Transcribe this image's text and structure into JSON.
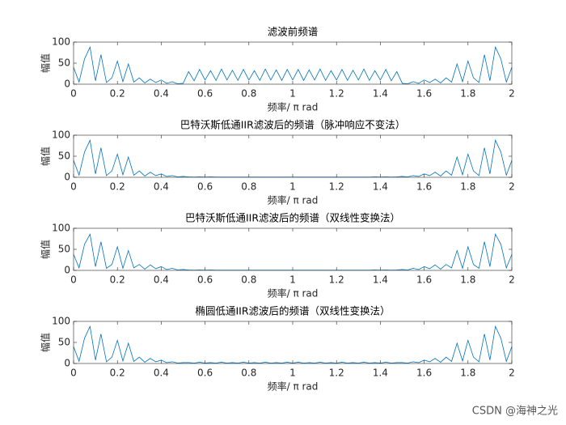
{
  "chart_data": [
    {
      "type": "line",
      "title": "滤波前频谱",
      "xlabel": "频率/ π rad",
      "ylabel": "幅值",
      "color": "#0072bd",
      "xlim": [
        0,
        2
      ],
      "ylim": [
        0,
        100
      ],
      "xticks": [
        0,
        0.2,
        0.4,
        0.6,
        0.8,
        1,
        1.2,
        1.4,
        1.6,
        1.8,
        2
      ],
      "yticks": [
        0,
        50,
        100
      ],
      "x": [
        0,
        0.025,
        0.05,
        0.075,
        0.1,
        0.125,
        0.15,
        0.175,
        0.2,
        0.225,
        0.25,
        0.275,
        0.3,
        0.325,
        0.35,
        0.375,
        0.4,
        0.425,
        0.45,
        0.475,
        0.5,
        0.525,
        0.55,
        0.575,
        0.6,
        0.625,
        0.65,
        0.675,
        0.7,
        0.725,
        0.75,
        0.775,
        0.8,
        0.825,
        0.85,
        0.875,
        0.9,
        0.925,
        0.95,
        0.975,
        1,
        1.025,
        1.05,
        1.075,
        1.1,
        1.125,
        1.15,
        1.175,
        1.2,
        1.225,
        1.25,
        1.275,
        1.3,
        1.325,
        1.35,
        1.375,
        1.4,
        1.425,
        1.45,
        1.475,
        1.5,
        1.525,
        1.55,
        1.575,
        1.6,
        1.625,
        1.65,
        1.675,
        1.7,
        1.725,
        1.75,
        1.775,
        1.8,
        1.825,
        1.85,
        1.875,
        1.9,
        1.925,
        1.95,
        1.975,
        2
      ],
      "values": [
        40,
        5,
        60,
        88,
        8,
        70,
        4,
        15,
        55,
        6,
        48,
        5,
        15,
        3,
        12,
        4,
        10,
        2,
        6,
        1,
        2,
        30,
        8,
        35,
        10,
        32,
        9,
        36,
        10,
        33,
        9,
        35,
        10,
        32,
        9,
        36,
        10,
        34,
        9,
        35,
        10,
        35,
        9,
        34,
        10,
        36,
        9,
        32,
        10,
        35,
        9,
        33,
        10,
        36,
        9,
        32,
        10,
        35,
        8,
        30,
        2,
        1,
        6,
        2,
        10,
        4,
        12,
        3,
        15,
        5,
        48,
        6,
        55,
        15,
        4,
        70,
        8,
        88,
        60,
        5,
        40
      ]
    },
    {
      "type": "line",
      "title": "巴特沃斯低通IIR滤波后的频谱（脉冲响应不变法）",
      "xlabel": "频率/ π rad",
      "ylabel": "幅值",
      "color": "#0072bd",
      "xlim": [
        0,
        2
      ],
      "ylim": [
        0,
        100
      ],
      "xticks": [
        0,
        0.2,
        0.4,
        0.6,
        0.8,
        1,
        1.2,
        1.4,
        1.6,
        1.8,
        2
      ],
      "yticks": [
        0,
        50,
        100
      ],
      "x": [
        0,
        0.025,
        0.05,
        0.075,
        0.1,
        0.125,
        0.15,
        0.175,
        0.2,
        0.225,
        0.25,
        0.275,
        0.3,
        0.325,
        0.35,
        0.375,
        0.4,
        0.425,
        0.45,
        0.475,
        0.5,
        0.525,
        0.55,
        0.575,
        0.6,
        0.625,
        0.65,
        0.675,
        0.7,
        0.725,
        0.75,
        0.775,
        0.8,
        0.825,
        0.85,
        0.875,
        0.9,
        0.925,
        0.95,
        0.975,
        1,
        1.025,
        1.05,
        1.075,
        1.1,
        1.125,
        1.15,
        1.175,
        1.2,
        1.225,
        1.25,
        1.275,
        1.3,
        1.325,
        1.35,
        1.375,
        1.4,
        1.425,
        1.45,
        1.475,
        1.5,
        1.525,
        1.55,
        1.575,
        1.6,
        1.625,
        1.65,
        1.675,
        1.7,
        1.725,
        1.75,
        1.775,
        1.8,
        1.825,
        1.85,
        1.875,
        1.9,
        1.925,
        1.95,
        1.975,
        2
      ],
      "values": [
        40,
        5,
        60,
        88,
        8,
        70,
        4,
        15,
        55,
        6,
        48,
        5,
        15,
        3,
        12,
        4,
        8,
        2,
        4,
        1,
        2,
        1,
        0.5,
        1,
        0.5,
        1,
        0.5,
        0.5,
        0.5,
        0.5,
        0.5,
        0.5,
        0.5,
        0.5,
        0.5,
        0.5,
        0.5,
        0.5,
        0.5,
        0.5,
        0.5,
        0.5,
        0.5,
        0.5,
        0.5,
        0.5,
        0.5,
        0.5,
        0.5,
        0.5,
        0.5,
        0.5,
        0.5,
        0.5,
        0.5,
        1,
        0.5,
        1,
        0.5,
        1,
        2,
        1,
        4,
        2,
        8,
        4,
        12,
        3,
        15,
        5,
        48,
        6,
        55,
        15,
        4,
        70,
        8,
        88,
        60,
        5,
        40
      ]
    },
    {
      "type": "line",
      "title": "巴特沃斯低通IIR滤波后的频谱（双线性变换法）",
      "xlabel": "频率/ π rad",
      "ylabel": "幅值",
      "color": "#0072bd",
      "xlim": [
        0,
        2
      ],
      "ylim": [
        0,
        100
      ],
      "xticks": [
        0,
        0.2,
        0.4,
        0.6,
        0.8,
        1,
        1.2,
        1.4,
        1.6,
        1.8,
        2
      ],
      "yticks": [
        0,
        50,
        100
      ],
      "x": [
        0,
        0.025,
        0.05,
        0.075,
        0.1,
        0.125,
        0.15,
        0.175,
        0.2,
        0.225,
        0.25,
        0.275,
        0.3,
        0.325,
        0.35,
        0.375,
        0.4,
        0.425,
        0.45,
        0.475,
        0.5,
        0.525,
        0.55,
        0.575,
        0.6,
        0.625,
        0.65,
        0.675,
        0.7,
        0.725,
        0.75,
        0.775,
        0.8,
        0.825,
        0.85,
        0.875,
        0.9,
        0.925,
        0.95,
        0.975,
        1,
        1.025,
        1.05,
        1.075,
        1.1,
        1.125,
        1.15,
        1.175,
        1.2,
        1.225,
        1.25,
        1.275,
        1.3,
        1.325,
        1.35,
        1.375,
        1.4,
        1.425,
        1.45,
        1.475,
        1.5,
        1.525,
        1.55,
        1.575,
        1.6,
        1.625,
        1.65,
        1.675,
        1.7,
        1.725,
        1.75,
        1.775,
        1.8,
        1.825,
        1.85,
        1.875,
        1.9,
        1.925,
        1.95,
        1.975,
        2
      ],
      "values": [
        38,
        6,
        62,
        86,
        9,
        68,
        5,
        14,
        56,
        5,
        47,
        6,
        14,
        3,
        13,
        4,
        9,
        2,
        5,
        1,
        2,
        1,
        0.5,
        1,
        0.5,
        1,
        0.5,
        0.5,
        0.5,
        0.5,
        0.5,
        0.5,
        0.5,
        0.5,
        0.5,
        0.5,
        0.5,
        0.5,
        0.5,
        0.5,
        0.5,
        0.5,
        0.5,
        0.5,
        0.5,
        0.5,
        0.5,
        0.5,
        0.5,
        0.5,
        0.5,
        0.5,
        0.5,
        0.5,
        0.5,
        1,
        0.5,
        1,
        0.5,
        1,
        2,
        1,
        5,
        2,
        9,
        4,
        13,
        3,
        14,
        6,
        47,
        5,
        56,
        14,
        5,
        68,
        9,
        86,
        62,
        6,
        38
      ]
    },
    {
      "type": "line",
      "title": "椭圆低通IIR滤波后的频谱（双线性变换法）",
      "xlabel": "频率/ π rad",
      "ylabel": "幅值",
      "color": "#0072bd",
      "xlim": [
        0,
        2
      ],
      "ylim": [
        0,
        100
      ],
      "xticks": [
        0,
        0.2,
        0.4,
        0.6,
        0.8,
        1,
        1.2,
        1.4,
        1.6,
        1.8,
        2
      ],
      "yticks": [
        0,
        50,
        100
      ],
      "x": [
        0,
        0.025,
        0.05,
        0.075,
        0.1,
        0.125,
        0.15,
        0.175,
        0.2,
        0.225,
        0.25,
        0.275,
        0.3,
        0.325,
        0.35,
        0.375,
        0.4,
        0.425,
        0.45,
        0.475,
        0.5,
        0.525,
        0.55,
        0.575,
        0.6,
        0.625,
        0.65,
        0.675,
        0.7,
        0.725,
        0.75,
        0.775,
        0.8,
        0.825,
        0.85,
        0.875,
        0.9,
        0.925,
        0.95,
        0.975,
        1,
        1.025,
        1.05,
        1.075,
        1.1,
        1.125,
        1.15,
        1.175,
        1.2,
        1.225,
        1.25,
        1.275,
        1.3,
        1.325,
        1.35,
        1.375,
        1.4,
        1.425,
        1.45,
        1.475,
        1.5,
        1.525,
        1.55,
        1.575,
        1.6,
        1.625,
        1.65,
        1.675,
        1.7,
        1.725,
        1.75,
        1.775,
        1.8,
        1.825,
        1.85,
        1.875,
        1.9,
        1.925,
        1.95,
        1.975,
        2
      ],
      "values": [
        40,
        5,
        60,
        88,
        8,
        70,
        4,
        15,
        55,
        6,
        48,
        5,
        15,
        3,
        12,
        4,
        8,
        2,
        4,
        1,
        2,
        2,
        1,
        3,
        1,
        2,
        1,
        3,
        1,
        2,
        1,
        3,
        1,
        2,
        1,
        3,
        1,
        2,
        1,
        3,
        1,
        3,
        1,
        2,
        1,
        3,
        1,
        2,
        1,
        3,
        1,
        2,
        1,
        3,
        1,
        2,
        1,
        3,
        1,
        2,
        2,
        1,
        4,
        2,
        8,
        4,
        12,
        3,
        15,
        5,
        48,
        6,
        55,
        15,
        4,
        70,
        8,
        88,
        60,
        5,
        40
      ]
    }
  ],
  "watermark": "CSDN @海神之光"
}
